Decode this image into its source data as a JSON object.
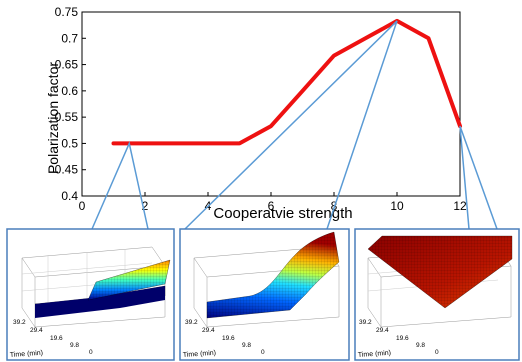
{
  "chart_data": [
    {
      "type": "line",
      "title": "",
      "xlabel": "Cooperatvie strength",
      "ylabel": "Polarization factor",
      "xlim": [
        0,
        12
      ],
      "ylim": [
        0.4,
        0.75
      ],
      "xticks": [
        "0",
        "2",
        "4",
        "6",
        "8",
        "10",
        "12"
      ],
      "yticks": [
        "0.4",
        "0.45",
        "0.5",
        "0.55",
        "0.6",
        "0.65",
        "0.7",
        "0.75"
      ],
      "grid": false,
      "series": [
        {
          "color": "#ee1111",
          "x": [
            1,
            2,
            3,
            4,
            5,
            6,
            7,
            8,
            9,
            10,
            11,
            12
          ],
          "y": [
            0.5,
            0.5,
            0.5,
            0.5,
            0.5,
            0.533,
            0.6,
            0.667,
            0.7,
            0.733,
            0.7,
            0.533
          ]
        }
      ],
      "callouts_at_x": [
        1.5,
        10,
        12
      ]
    },
    {
      "type": "surface",
      "panel": "left",
      "axis_label": "Time (min)",
      "time_ticks": [
        "39.2",
        "29.4",
        "19.6",
        "9.8",
        "0"
      ],
      "colormap": "jet",
      "shape": "flat low floor with a sharp rise along the far edge"
    },
    {
      "type": "surface",
      "panel": "middle",
      "axis_label": "Time (min)",
      "time_ticks": [
        "39.2",
        "29.4",
        "19.6",
        "9.8",
        "0"
      ],
      "colormap": "jet",
      "shape": "sigmoidal rise to a high ridge"
    },
    {
      "type": "surface",
      "panel": "right",
      "axis_label": "Time (min)",
      "time_ticks": [
        "39.2",
        "29.4",
        "19.6",
        "9.8",
        "0"
      ],
      "colormap": "hot",
      "shape": "flat high tilted plane"
    }
  ],
  "colors": {
    "line": "#ee1111",
    "callout": "#5b9bd5",
    "panel_border": "#4a7ebb",
    "axis": "#000000"
  }
}
